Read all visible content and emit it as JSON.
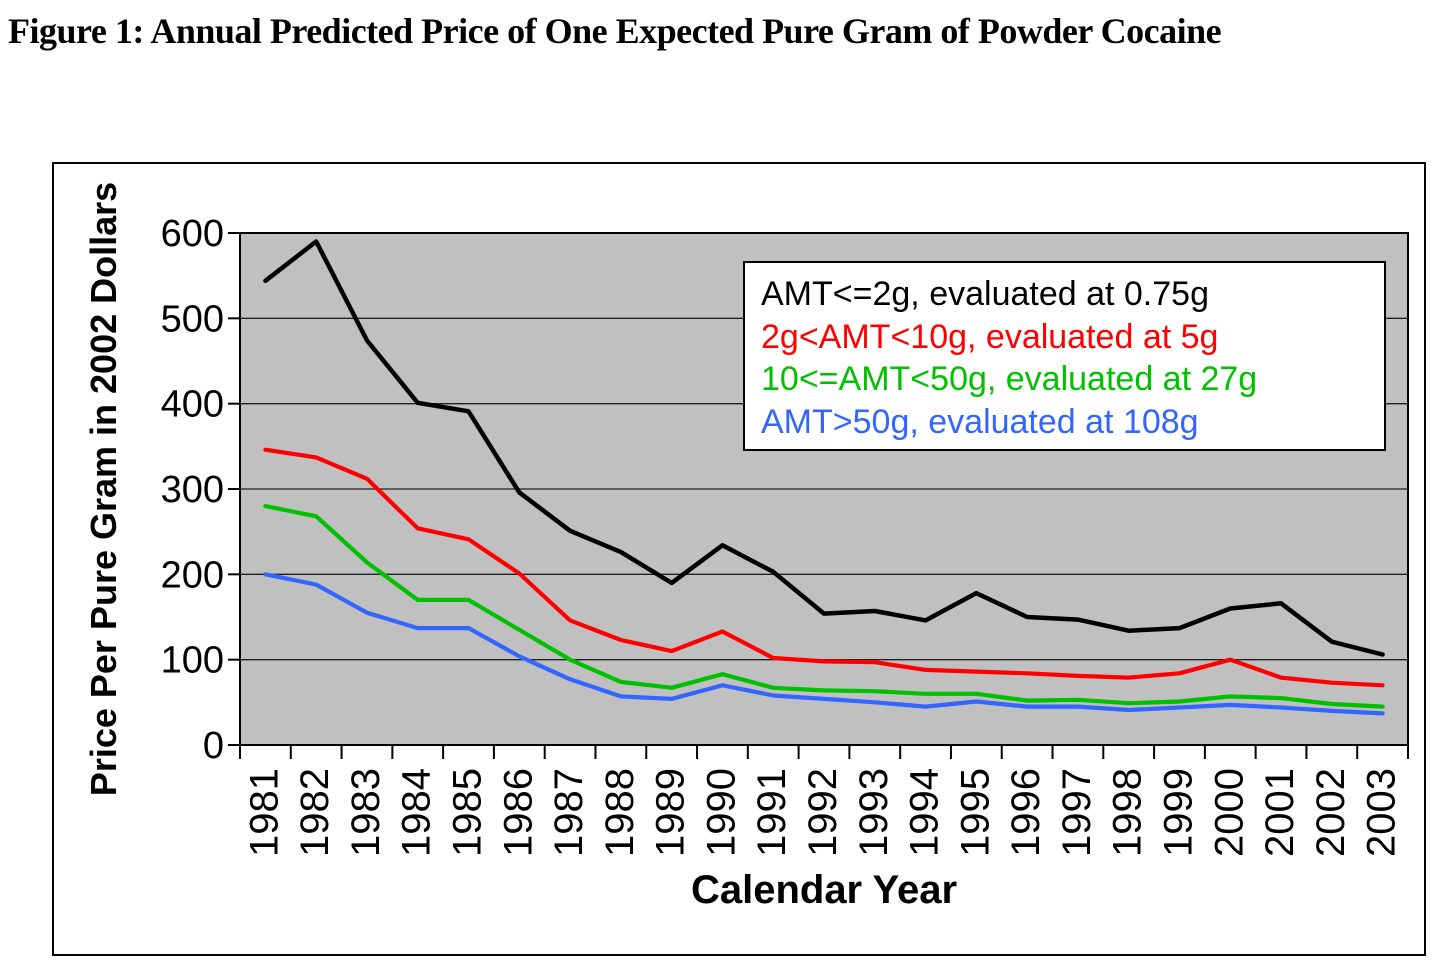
{
  "figure_title": "Figure 1: Annual Predicted Price of One Expected Pure Gram of Powder Cocaine",
  "chart_data": {
    "type": "line",
    "title": "Figure 1: Annual Predicted Price of One Expected Pure Gram of Powder Cocaine",
    "xlabel": "Calendar Year",
    "ylabel": "Price Per Pure Gram in 2002 Dollars",
    "ylim": [
      0,
      600
    ],
    "yticks": [
      0,
      100,
      200,
      300,
      400,
      500,
      600
    ],
    "grid": true,
    "plot_background_color": "#c0c0c0",
    "gridline_color": "#222222",
    "legend_position": "top-right-inside",
    "categories": [
      "1981",
      "1982",
      "1983",
      "1984",
      "1985",
      "1986",
      "1987",
      "1988",
      "1989",
      "1990",
      "1991",
      "1992",
      "1993",
      "1994",
      "1995",
      "1996",
      "1997",
      "1998",
      "1999",
      "2000",
      "2001",
      "2002",
      "2003"
    ],
    "series": [
      {
        "name": "AMT<=2g, evaluated at 0.75g",
        "color": "#000000",
        "values": [
          544,
          590,
          474,
          401,
          391,
          296,
          251,
          226,
          190,
          234,
          203,
          154,
          157,
          146,
          178,
          150,
          147,
          134,
          137,
          160,
          166,
          121,
          106
        ]
      },
      {
        "name": "2g<AMT<10g, evaluated at 5g",
        "color": "#ff0000",
        "values": [
          346,
          337,
          312,
          254,
          241,
          201,
          146,
          123,
          110,
          133,
          102,
          98,
          97,
          88,
          86,
          84,
          81,
          79,
          84,
          100,
          79,
          73,
          70
        ]
      },
      {
        "name": "10<=AMT<50g, evaluated at 27g",
        "color": "#00c000",
        "values": [
          280,
          268,
          214,
          170,
          170,
          135,
          100,
          74,
          67,
          83,
          67,
          64,
          63,
          60,
          60,
          52,
          53,
          49,
          51,
          57,
          55,
          48,
          45
        ]
      },
      {
        "name": "AMT>50g, evaluated at 108g",
        "color": "#3366ff",
        "values": [
          200,
          188,
          155,
          137,
          137,
          104,
          77,
          57,
          54,
          70,
          58,
          54,
          50,
          45,
          51,
          45,
          45,
          41,
          44,
          47,
          44,
          40,
          37
        ]
      }
    ]
  }
}
